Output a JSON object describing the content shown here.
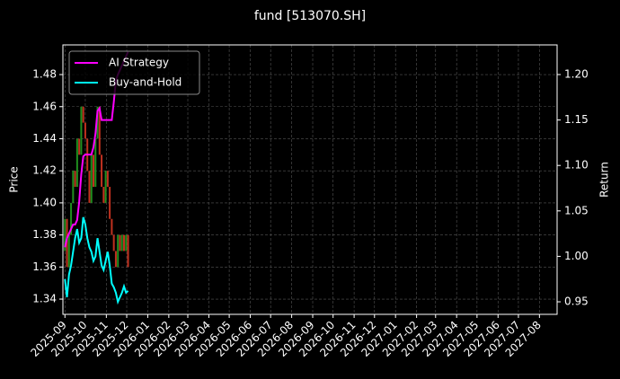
{
  "chart_data": {
    "type": "candlestick-line",
    "title": "fund [513070.SH]",
    "y_label": "Price",
    "y2_label": "Return",
    "x": [
      "2025-09-01",
      "2025-09-04",
      "2025-09-07",
      "2025-09-10",
      "2025-09-13",
      "2025-09-16",
      "2025-09-19",
      "2025-09-22",
      "2025-09-25",
      "2025-09-28",
      "2025-10-01",
      "2025-10-04",
      "2025-10-07",
      "2025-10-10",
      "2025-10-13",
      "2025-10-16",
      "2025-10-19",
      "2025-10-22",
      "2025-10-25",
      "2025-10-28",
      "2025-10-31",
      "2025-11-03",
      "2025-11-06",
      "2025-11-09",
      "2025-11-12",
      "2025-11-15",
      "2025-11-18",
      "2025-11-21",
      "2025-11-24",
      "2025-11-27",
      "2025-11-30",
      "2025-12-03"
    ],
    "open": [
      1.37,
      1.39,
      1.36,
      1.38,
      1.4,
      1.42,
      1.41,
      1.44,
      1.43,
      1.46,
      1.45,
      1.44,
      1.42,
      1.4,
      1.43,
      1.41,
      1.44,
      1.46,
      1.43,
      1.41,
      1.4,
      1.42,
      1.41,
      1.39,
      1.38,
      1.37,
      1.36,
      1.38,
      1.37,
      1.38,
      1.37,
      1.38
    ],
    "close": [
      1.39,
      1.36,
      1.38,
      1.4,
      1.42,
      1.41,
      1.44,
      1.43,
      1.46,
      1.45,
      1.44,
      1.42,
      1.4,
      1.43,
      1.41,
      1.44,
      1.46,
      1.43,
      1.41,
      1.4,
      1.42,
      1.41,
      1.39,
      1.38,
      1.37,
      1.36,
      1.38,
      1.37,
      1.38,
      1.37,
      1.38,
      1.36
    ],
    "up_color": "#1f8f1f",
    "down_color": "#c0311f",
    "series": [
      {
        "name": "AI Strategy",
        "color": "#ff00ff",
        "axis": "y2",
        "values": [
          1.01,
          1.02,
          1.025,
          1.03,
          1.035,
          1.035,
          1.04,
          1.06,
          1.09,
          1.11,
          1.112,
          1.112,
          1.112,
          1.112,
          1.12,
          1.135,
          1.16,
          1.163,
          1.15,
          1.15,
          1.15,
          1.15,
          1.15,
          1.15,
          1.17,
          1.193,
          1.2,
          1.205,
          1.21,
          1.215,
          1.22,
          1.225
        ]
      },
      {
        "name": "Buy-and-Hold",
        "color": "#00ffff",
        "axis": "y2",
        "values": [
          0.975,
          0.955,
          0.98,
          0.99,
          1.005,
          1.02,
          1.03,
          1.015,
          1.02,
          1.043,
          1.035,
          1.02,
          1.01,
          1.005,
          0.995,
          1.0,
          1.02,
          1.005,
          0.99,
          0.985,
          0.995,
          1.005,
          0.99,
          0.97,
          0.966,
          0.96,
          0.95,
          0.955,
          0.96,
          0.967,
          0.96,
          0.962
        ]
      }
    ],
    "xlim": [
      "2025-08-29",
      "2027-08-27"
    ],
    "xticks": [
      {
        "value": "2025-09-01",
        "label": "2025-09"
      },
      {
        "value": "2025-10-01",
        "label": "2025-10"
      },
      {
        "value": "2025-11-01",
        "label": "2025-11"
      },
      {
        "value": "2025-12-01",
        "label": "2025-12"
      },
      {
        "value": "2026-01-01",
        "label": "2026-01"
      },
      {
        "value": "2026-02-01",
        "label": "2026-02"
      },
      {
        "value": "2026-03-01",
        "label": "2026-03"
      },
      {
        "value": "2026-04-01",
        "label": "2026-04"
      },
      {
        "value": "2026-05-01",
        "label": "2026-05"
      },
      {
        "value": "2026-06-01",
        "label": "2026-06"
      },
      {
        "value": "2026-07-01",
        "label": "2026-07"
      },
      {
        "value": "2026-08-01",
        "label": "2026-08"
      },
      {
        "value": "2026-09-01",
        "label": "2026-09"
      },
      {
        "value": "2026-10-01",
        "label": "2026-10"
      },
      {
        "value": "2026-11-01",
        "label": "2026-11"
      },
      {
        "value": "2026-12-01",
        "label": "2026-12"
      },
      {
        "value": "2027-01-01",
        "label": "2027-01"
      },
      {
        "value": "2027-02-01",
        "label": "2027-02"
      },
      {
        "value": "2027-03-01",
        "label": "2027-03"
      },
      {
        "value": "2027-04-01",
        "label": "2027-04"
      },
      {
        "value": "2027-05-01",
        "label": "2027-05"
      },
      {
        "value": "2027-06-01",
        "label": "2027-06"
      },
      {
        "value": "2027-07-01",
        "label": "2027-07"
      },
      {
        "value": "2027-08-01",
        "label": "2027-08"
      }
    ],
    "ylim": [
      1.3305,
      1.4985
    ],
    "yticks": [
      {
        "value": 1.34,
        "label": "1.34"
      },
      {
        "value": 1.36,
        "label": "1.36"
      },
      {
        "value": 1.38,
        "label": "1.38"
      },
      {
        "value": 1.4,
        "label": "1.40"
      },
      {
        "value": 1.42,
        "label": "1.42"
      },
      {
        "value": 1.44,
        "label": "1.44"
      },
      {
        "value": 1.46,
        "label": "1.46"
      },
      {
        "value": 1.48,
        "label": "1.48"
      }
    ],
    "y2lim": [
      0.9362,
      1.2326
    ],
    "y2ticks": [
      0.95,
      {
        "value": 1.0,
        "label": "1.00"
      },
      1.05,
      {
        "value": 1.1,
        "label": "1.10"
      },
      1.15,
      {
        "value": 1.2,
        "label": "1.20"
      }
    ],
    "grid": true,
    "legend": "upper-left"
  }
}
